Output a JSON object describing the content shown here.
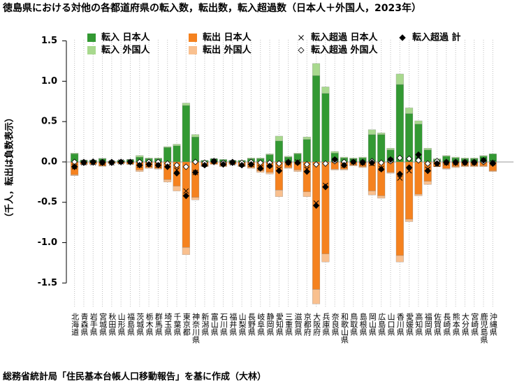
{
  "chart_data": {
    "type": "bar",
    "title": "徳島県における対他の各都道府県の転入数，転出数，転入超過数（日本人＋外国人，2023年）",
    "ylabel": "（千人，転出は負数表示）",
    "caption": "総務省統計局「住民基本台帳人口移動報告」を基に作成（大林）",
    "categories": [
      "北海道",
      "青森県",
      "岩手県",
      "宮城県",
      "秋田県",
      "山形県",
      "福島県",
      "茨城県",
      "栃木県",
      "群馬県",
      "埼玉県",
      "千葉県",
      "東京都",
      "神奈川県",
      "新潟県",
      "富山県",
      "石川県",
      "福井県",
      "山梨県",
      "長野県",
      "岐阜県",
      "静岡県",
      "愛知県",
      "三重県",
      "滋賀県",
      "京都府",
      "大阪府",
      "兵庫県",
      "奈良県",
      "和歌山県",
      "鳥取県",
      "島根県",
      "岡山県",
      "広島県",
      "山口県",
      "香川県",
      "愛媛県",
      "高知県",
      "福岡県",
      "佐賀県",
      "長崎県",
      "熊本県",
      "大分県",
      "宮崎県",
      "鹿児島県",
      "沖縄県"
    ],
    "series": [
      {
        "name": "転入 日本人",
        "type": "bar",
        "color": "#339933",
        "values": [
          0.1,
          0.02,
          0.02,
          0.04,
          0.01,
          0.02,
          0.03,
          0.06,
          0.04,
          0.04,
          0.18,
          0.2,
          0.7,
          0.31,
          0.02,
          0.04,
          0.03,
          0.02,
          0.02,
          0.04,
          0.04,
          0.09,
          0.26,
          0.06,
          0.1,
          0.28,
          1.07,
          0.85,
          0.11,
          0.05,
          0.04,
          0.05,
          0.34,
          0.34,
          0.15,
          0.96,
          0.6,
          0.47,
          0.15,
          0.03,
          0.07,
          0.05,
          0.04,
          0.04,
          0.07,
          0.1
        ]
      },
      {
        "name": "転入 外国人",
        "type": "bar",
        "color": "#a8d98e",
        "values": [
          0.01,
          0.005,
          0.005,
          0.005,
          0,
          0,
          0,
          0.02,
          0.01,
          0.01,
          0.01,
          0.02,
          0.03,
          0.03,
          0,
          0,
          0,
          0,
          0,
          0.01,
          0.01,
          0.01,
          0.06,
          0.01,
          0.01,
          0.03,
          0.15,
          0.08,
          0.02,
          0.01,
          0.01,
          0.01,
          0.06,
          0.02,
          0.02,
          0.13,
          0.07,
          0.04,
          0.02,
          0.01,
          0.01,
          0.01,
          0.01,
          0.01,
          0.01,
          0
        ]
      },
      {
        "name": "転出 日本人",
        "type": "bar",
        "color": "#f5821f",
        "values": [
          -0.16,
          -0.03,
          -0.03,
          -0.05,
          -0.02,
          -0.02,
          -0.03,
          -0.1,
          -0.07,
          -0.08,
          -0.22,
          -0.3,
          -1.06,
          -0.44,
          -0.05,
          -0.03,
          -0.05,
          -0.03,
          -0.05,
          -0.07,
          -0.11,
          -0.13,
          -0.35,
          -0.07,
          -0.1,
          -0.37,
          -1.58,
          -1.14,
          -0.09,
          -0.09,
          -0.04,
          -0.06,
          -0.36,
          -0.42,
          -0.13,
          -1.16,
          -0.71,
          -0.4,
          -0.24,
          -0.06,
          -0.08,
          -0.06,
          -0.05,
          -0.05,
          -0.05,
          -0.11
        ]
      },
      {
        "name": "転出 外国人",
        "type": "bar",
        "color": "#f9c08f",
        "values": [
          -0.01,
          -0.005,
          0,
          -0.005,
          0,
          0,
          0,
          -0.02,
          -0.01,
          -0.01,
          -0.03,
          -0.06,
          -0.09,
          -0.03,
          -0.01,
          0,
          -0.01,
          0,
          -0.01,
          -0.01,
          -0.02,
          -0.02,
          -0.08,
          -0.01,
          -0.02,
          -0.06,
          -0.18,
          -0.1,
          -0.01,
          -0.01,
          -0.01,
          -0.01,
          -0.05,
          -0.03,
          -0.01,
          -0.08,
          -0.03,
          -0.02,
          -0.04,
          0,
          -0.01,
          -0.01,
          -0.01,
          -0.01,
          -0.01,
          -0.01
        ]
      },
      {
        "name": "転入超過 日本人",
        "type": "scatter",
        "marker": "cross",
        "color": "#000000",
        "values": [
          -0.06,
          -0.01,
          -0.01,
          -0.01,
          -0.01,
          0,
          0,
          -0.04,
          -0.03,
          -0.04,
          -0.04,
          -0.1,
          -0.36,
          -0.13,
          -0.03,
          0.01,
          -0.02,
          -0.01,
          -0.03,
          -0.03,
          -0.07,
          -0.04,
          -0.09,
          -0.01,
          0,
          -0.09,
          -0.51,
          -0.29,
          0.02,
          -0.04,
          0,
          -0.01,
          -0.02,
          -0.08,
          0.02,
          -0.2,
          -0.11,
          0.07,
          -0.09,
          -0.03,
          -0.01,
          -0.01,
          -0.01,
          -0.01,
          0.02,
          -0.01
        ]
      },
      {
        "name": "転入超過 外国人",
        "type": "scatter",
        "marker": "open-diamond",
        "color": "#000000",
        "values": [
          0,
          0,
          0.005,
          0,
          0,
          0,
          0,
          0,
          0,
          0,
          -0.02,
          -0.04,
          -0.06,
          0,
          -0.01,
          0,
          -0.01,
          0,
          -0.01,
          0,
          -0.01,
          -0.01,
          -0.02,
          0,
          -0.01,
          -0.03,
          -0.03,
          -0.02,
          0.01,
          0,
          0,
          0,
          0.01,
          -0.01,
          0.01,
          0.05,
          0.04,
          0.02,
          -0.02,
          0.01,
          0,
          0,
          0,
          0,
          0,
          -0.01
        ]
      },
      {
        "name": "転入超過 計",
        "type": "scatter",
        "marker": "diamond",
        "color": "#000000",
        "values": [
          -0.06,
          -0.01,
          -0.005,
          -0.01,
          -0.01,
          0,
          0,
          -0.04,
          -0.03,
          -0.04,
          -0.06,
          -0.14,
          -0.42,
          -0.13,
          -0.04,
          0.01,
          -0.03,
          -0.01,
          -0.04,
          -0.03,
          -0.08,
          -0.05,
          -0.11,
          -0.01,
          -0.01,
          -0.12,
          -0.54,
          -0.31,
          0.03,
          -0.04,
          0,
          -0.01,
          -0.01,
          -0.09,
          0.03,
          -0.15,
          -0.07,
          0.09,
          -0.11,
          -0.02,
          -0.01,
          -0.01,
          -0.01,
          -0.01,
          0.02,
          -0.02
        ]
      }
    ],
    "ylim": [
      -1.8,
      1.6
    ],
    "yticks": [
      -1.5,
      {
        "value": -1,
        "label": "-1.0"
      },
      -0.5,
      {
        "value": 0,
        "label": "0.0"
      },
      0.5,
      {
        "value": 1,
        "label": "1.0"
      },
      1.5
    ],
    "xgrid": true
  }
}
